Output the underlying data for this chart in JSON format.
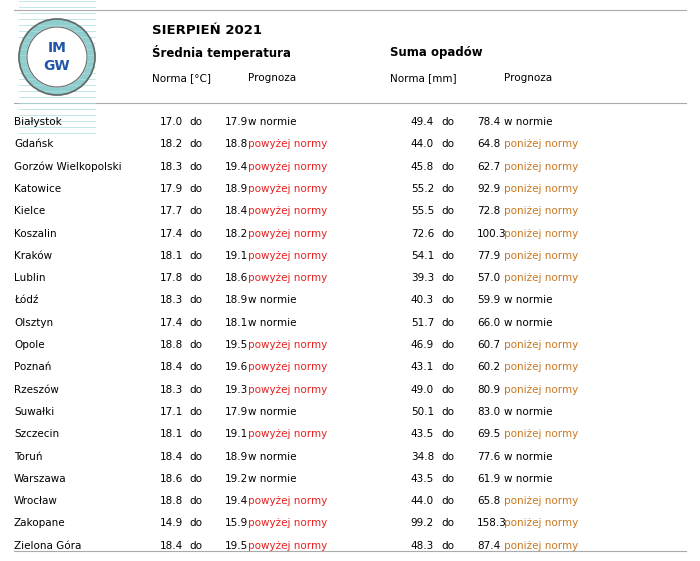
{
  "title_line1": "SIERPIEŃ 2021",
  "header_temp": "Średnia temperatura",
  "header_precip": "Suma opadów",
  "col_norma_temp": "Norma [°C]",
  "col_prognoza": "Prognoza",
  "col_norma_precip": "Norma [mm]",
  "col_prognoza2": "Prognoza",
  "cities": [
    "Białystok",
    "Gdańsk",
    "Gorzów Wielkopolski",
    "Katowice",
    "Kielce",
    "Koszalin",
    "Kraków",
    "Lublin",
    "Łódź",
    "Olsztyn",
    "Opole",
    "Poznań",
    "Rzeszów",
    "Suwałki",
    "Szczecin",
    "Toruń",
    "Warszawa",
    "Wrocław",
    "Zakopane",
    "Zielona Góra"
  ],
  "temp_lo": [
    17.0,
    18.2,
    18.3,
    17.9,
    17.7,
    17.4,
    18.1,
    17.8,
    18.3,
    17.4,
    18.8,
    18.4,
    18.3,
    17.1,
    18.1,
    18.4,
    18.6,
    18.8,
    14.9,
    18.4
  ],
  "temp_hi": [
    17.9,
    18.8,
    19.4,
    18.9,
    18.4,
    18.2,
    19.1,
    18.6,
    18.9,
    18.1,
    19.5,
    19.6,
    19.3,
    17.9,
    19.1,
    18.9,
    19.2,
    19.4,
    15.9,
    19.5
  ],
  "temp_forecast": [
    "w normie",
    "powyżej normy",
    "powyżej normy",
    "powyżej normy",
    "powyżej normy",
    "powyżej normy",
    "powyżej normy",
    "powyżej normy",
    "w normie",
    "w normie",
    "powyżej normy",
    "powyżej normy",
    "powyżej normy",
    "w normie",
    "powyżej normy",
    "w normie",
    "w normie",
    "powyżej normy",
    "powyżej normy",
    "powyżej normy"
  ],
  "precip_lo": [
    49.4,
    44.0,
    45.8,
    55.2,
    55.5,
    72.6,
    54.1,
    39.3,
    40.3,
    51.7,
    46.9,
    43.1,
    49.0,
    50.1,
    43.5,
    34.8,
    43.5,
    44.0,
    99.2,
    48.3
  ],
  "precip_hi": [
    78.4,
    64.8,
    62.7,
    92.9,
    72.8,
    100.3,
    77.9,
    57.0,
    59.9,
    66.0,
    60.7,
    60.2,
    80.9,
    83.0,
    69.5,
    77.6,
    61.9,
    65.8,
    158.3,
    87.4
  ],
  "precip_forecast": [
    "w normie",
    "poniżej normy",
    "poniżej normy",
    "poniżej normy",
    "poniżej normy",
    "poniżej normy",
    "poniżej normy",
    "poniżej normy",
    "w normie",
    "w normie",
    "poniżej normy",
    "poniżej normy",
    "poniżej normy",
    "w normie",
    "poniżej normy",
    "w normie",
    "w normie",
    "poniżej normy",
    "poniżej normy",
    "poniżej normy"
  ],
  "color_powyzej": "#E82020",
  "color_ponizej": "#C87820",
  "color_normie": "#000000",
  "bg_color": "#FFFFFF",
  "line_color": "#AAAAAA",
  "logo_outer_color": "#8ECECE",
  "logo_border_color": "#666666",
  "logo_text_color": "#2255AA",
  "logo_stripe_color": "#AAAAAA"
}
